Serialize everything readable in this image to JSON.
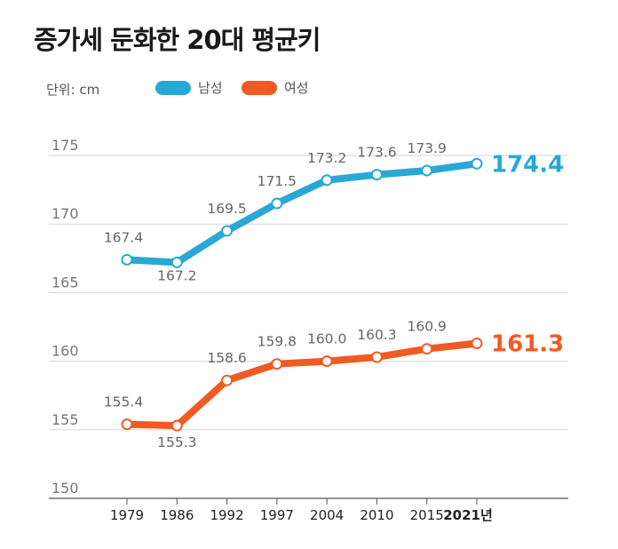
{
  "chart_data": {
    "type": "line",
    "title": "증가세 둔화한 20대 평균키",
    "unit_label": "단위: cm",
    "categories": [
      "1979",
      "1986",
      "1992",
      "1997",
      "2004",
      "2010",
      "2015",
      "2021년"
    ],
    "ylim": [
      150,
      175
    ],
    "yticks": [
      "150",
      "155",
      "160",
      "165",
      "170",
      "175"
    ],
    "grid": true,
    "legend_position": "top-left",
    "series": [
      {
        "name": "남성",
        "color": "#29a8d6",
        "values": [
          167.4,
          167.2,
          169.5,
          171.5,
          173.2,
          173.6,
          173.9,
          174.4
        ],
        "labels": [
          "167.4",
          "167.2",
          "169.5",
          "171.5",
          "173.2",
          "173.6",
          "173.9",
          "174.4"
        ]
      },
      {
        "name": "여성",
        "color": "#f25a24",
        "values": [
          155.4,
          155.3,
          158.6,
          159.8,
          160.0,
          160.3,
          160.9,
          161.3
        ],
        "labels": [
          "155.4",
          "155.3",
          "158.6",
          "159.8",
          "160.0",
          "160.3",
          "160.9",
          "161.3"
        ]
      }
    ]
  }
}
